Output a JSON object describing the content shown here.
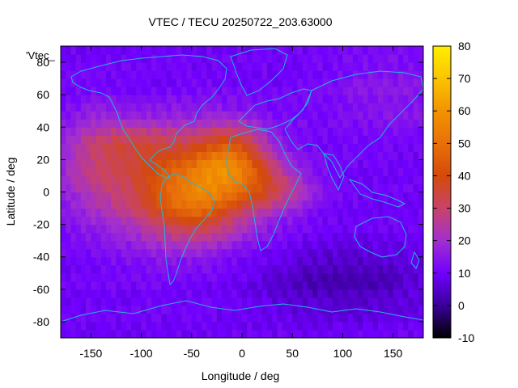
{
  "chart_data": {
    "type": "heatmap",
    "title": "VTEC / TECU 20250722_203.63000",
    "xlabel": "Longitude / deg",
    "ylabel": "Latitude / deg",
    "key_label": "'Vtec_",
    "xlim": [
      -180,
      180
    ],
    "ylim": [
      -90,
      90
    ],
    "x_ticks": [
      -150,
      -100,
      -50,
      0,
      50,
      100,
      150
    ],
    "y_ticks": [
      -80,
      -60,
      -40,
      -20,
      0,
      20,
      40,
      60,
      80
    ],
    "colorbar": {
      "range": [
        -10,
        80
      ],
      "ticks": [
        -10,
        0,
        10,
        20,
        30,
        40,
        50,
        60,
        70,
        80
      ]
    },
    "grid": false,
    "background_value": 10,
    "blobs": [
      {
        "lon": -60,
        "lat": 5,
        "sx": 55,
        "sy": 24,
        "amp": 30
      },
      {
        "lon": -10,
        "lat": 20,
        "sx": 25,
        "sy": 14,
        "amp": 25
      },
      {
        "lon": -45,
        "lat": -5,
        "sx": 30,
        "sy": 15,
        "amp": 15
      },
      {
        "lon": 30,
        "lat": 2,
        "sx": 28,
        "sy": 10,
        "amp": 14
      },
      {
        "lon": -150,
        "lat": 20,
        "sx": 25,
        "sy": 22,
        "amp": 10
      },
      {
        "lon": -110,
        "lat": 30,
        "sx": 30,
        "sy": 10,
        "amp": 10
      },
      {
        "lon": 100,
        "lat": -55,
        "sx": 60,
        "sy": 15,
        "amp": -8
      },
      {
        "lon": 150,
        "lat": 60,
        "sx": 50,
        "sy": 18,
        "amp": 5
      }
    ]
  }
}
